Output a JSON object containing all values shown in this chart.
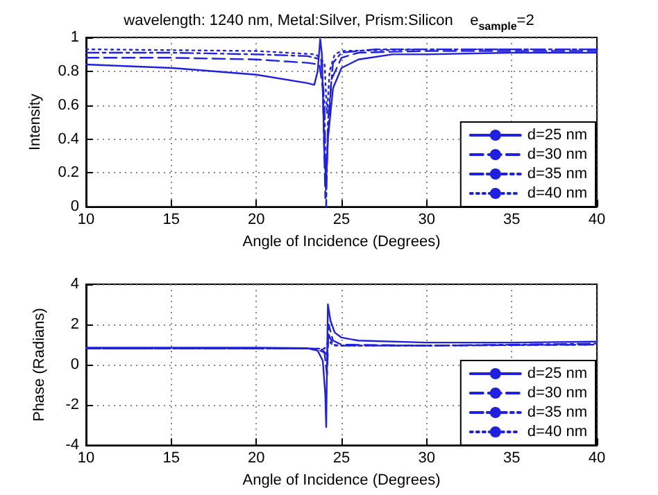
{
  "chart_data": [
    {
      "type": "line",
      "title": "wavelength: 1240 nm, Metal:Silver, Prism:Silicon    e$_{sample}$=2",
      "xlabel": "Angle of Incidence (Degrees)",
      "ylabel": "Intensity",
      "xlim": [
        10,
        40
      ],
      "xticks": [
        10,
        15,
        20,
        25,
        30,
        35,
        40
      ],
      "ylim": [
        0,
        1
      ],
      "yticks": [
        0,
        0.2,
        0.4,
        0.6,
        0.8,
        1
      ],
      "grid": true,
      "legend": "bottom right",
      "series": [
        {
          "name": "d=25 nm",
          "color": "#2020e0",
          "line_style": "solid",
          "x": [
            10,
            15,
            20,
            23,
            23.4,
            23.6,
            23.75,
            23.85,
            24.0,
            24.1,
            24.2,
            24.5,
            25,
            26,
            28,
            30,
            35,
            40
          ],
          "values": [
            0.84,
            0.82,
            0.78,
            0.73,
            0.72,
            0.8,
            0.99,
            0.9,
            0.3,
            0.15,
            0.4,
            0.7,
            0.82,
            0.87,
            0.9,
            0.9,
            0.91,
            0.91
          ]
        },
        {
          "name": "d=30 nm",
          "color": "#2020e0",
          "line_style": "dashed",
          "x": [
            10,
            15,
            20,
            23,
            23.7,
            23.9,
            24.05,
            24.15,
            24.4,
            25,
            26,
            30,
            40
          ],
          "values": [
            0.88,
            0.88,
            0.87,
            0.85,
            0.84,
            0.7,
            0.05,
            0.3,
            0.75,
            0.88,
            0.91,
            0.92,
            0.92
          ]
        },
        {
          "name": "d=35 nm",
          "color": "#2020e0",
          "line_style": "dashdot",
          "x": [
            10,
            15,
            20,
            23,
            23.8,
            24.0,
            24.1,
            24.2,
            24.5,
            25,
            27,
            40
          ],
          "values": [
            0.91,
            0.91,
            0.9,
            0.89,
            0.87,
            0.6,
            0.0,
            0.5,
            0.85,
            0.91,
            0.93,
            0.93
          ]
        },
        {
          "name": "d=40 nm",
          "color": "#2020e0",
          "line_style": "dotted",
          "x": [
            10,
            20,
            23.5,
            24.0,
            24.15,
            24.3,
            24.6,
            25,
            30,
            40
          ],
          "values": [
            0.93,
            0.92,
            0.9,
            0.85,
            0.55,
            0.8,
            0.9,
            0.92,
            0.93,
            0.93
          ]
        }
      ]
    },
    {
      "type": "line",
      "xlabel": "Angle of Incidence (Degrees)",
      "ylabel": "Phase (Radians)",
      "xlim": [
        10,
        40
      ],
      "xticks": [
        10,
        15,
        20,
        25,
        30,
        35,
        40
      ],
      "ylim": [
        -4,
        4
      ],
      "yticks": [
        -4,
        -2,
        0,
        2,
        4
      ],
      "grid": true,
      "legend": "bottom right",
      "series": [
        {
          "name": "d=25 nm",
          "color": "#2020e0",
          "line_style": "solid",
          "x": [
            10,
            20,
            23,
            23.6,
            23.9,
            24.05,
            24.1,
            24.15,
            24.2,
            24.35,
            24.6,
            25,
            26,
            30,
            35,
            40
          ],
          "values": [
            0.85,
            0.85,
            0.82,
            0.7,
            0.2,
            -1.5,
            -3.1,
            0,
            3.0,
            2.2,
            1.6,
            1.35,
            1.2,
            1.1,
            1.1,
            1.15
          ]
        },
        {
          "name": "d=30 nm",
          "color": "#2020e0",
          "line_style": "dashed",
          "x": [
            10,
            20,
            23.5,
            24.0,
            24.15,
            24.25,
            24.5,
            25,
            30,
            40
          ],
          "values": [
            0.8,
            0.82,
            0.8,
            0.6,
            -0.5,
            2.0,
            1.2,
            1.0,
            0.95,
            1.0
          ]
        },
        {
          "name": "d=35 nm",
          "color": "#2020e0",
          "line_style": "dashdot",
          "x": [
            10,
            23.8,
            24.15,
            24.25,
            24.5,
            25,
            30,
            40
          ],
          "values": [
            0.8,
            0.8,
            0.5,
            1.5,
            1.0,
            0.95,
            0.95,
            1.05
          ]
        },
        {
          "name": "d=40 nm",
          "color": "#2020e0",
          "line_style": "dotted",
          "x": [
            10,
            24.0,
            24.25,
            24.5,
            30,
            40
          ],
          "values": [
            0.8,
            0.8,
            1.2,
            0.95,
            0.95,
            1.0
          ]
        }
      ]
    }
  ]
}
